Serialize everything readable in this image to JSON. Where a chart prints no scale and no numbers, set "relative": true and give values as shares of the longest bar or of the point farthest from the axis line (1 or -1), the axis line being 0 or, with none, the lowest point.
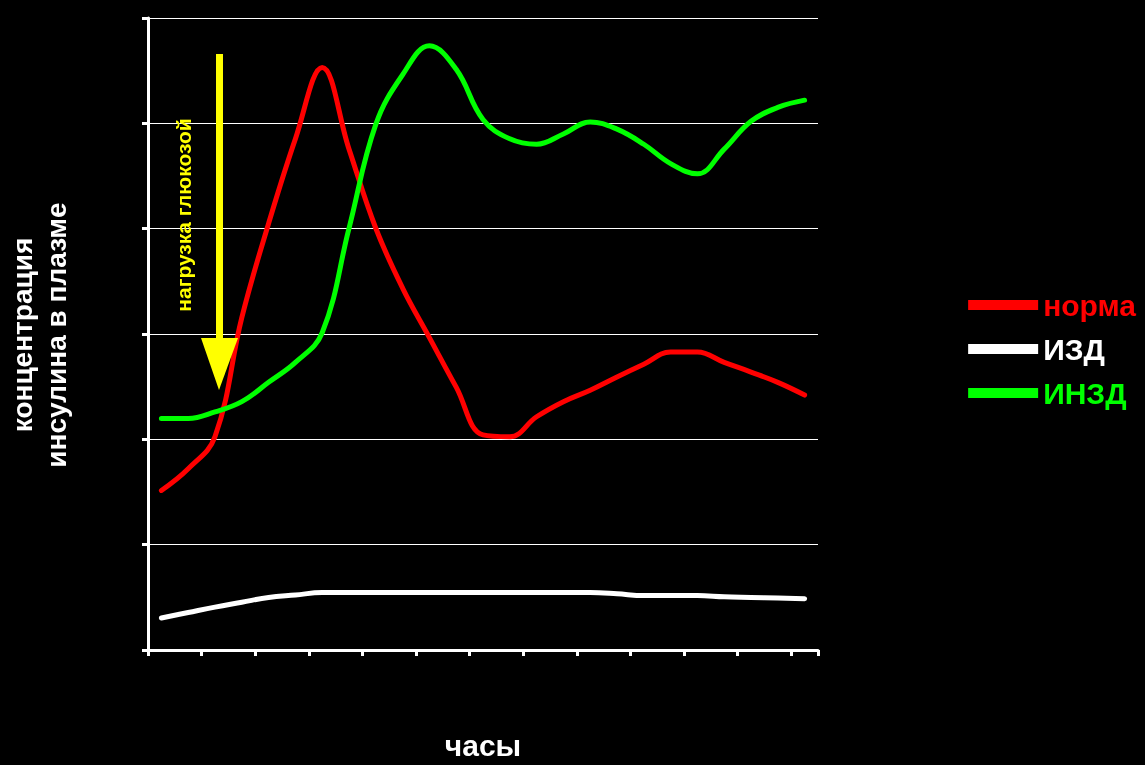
{
  "chart_data": {
    "type": "line",
    "relative": true,
    "xlabel": "часы",
    "ylabel": "концентрация\nинсулина в плазме",
    "annotations": [
      "нагрузка глюкозой"
    ],
    "categories": [
      null,
      null,
      null,
      null,
      null,
      null,
      null,
      null,
      null,
      null,
      null,
      null,
      null,
      null,
      null,
      null,
      null,
      null,
      null,
      null,
      null,
      null,
      null,
      null,
      null
    ],
    "series": [
      {
        "name": "норма",
        "color": "#ff0000",
        "values": [
          0.264,
          0.3,
          0.353,
          0.55,
          0.706,
          0.846,
          0.964,
          0.829,
          0.698,
          0.599,
          0.517,
          0.435,
          0.356,
          0.353,
          0.386,
          0.411,
          0.43,
          0.452,
          0.473,
          0.493,
          0.493,
          0.476,
          0.46,
          0.443,
          0.422
        ]
      },
      {
        "name": "ИЗД",
        "color": "#ffffff",
        "values": [
          0.053,
          0.062,
          0.071,
          0.079,
          0.087,
          0.091,
          0.095,
          0.095,
          0.095,
          0.095,
          0.095,
          0.095,
          0.095,
          0.095,
          0.095,
          0.095,
          0.095,
          0.093,
          0.09,
          0.09,
          0.09,
          0.088,
          0.087,
          0.086,
          0.085
        ]
      },
      {
        "name": "ИНЗД",
        "color": "#00ff00",
        "values": [
          0.383,
          0.383,
          0.394,
          0.411,
          0.443,
          0.476,
          0.525,
          0.698,
          0.87,
          0.952,
          1,
          0.961,
          0.878,
          0.846,
          0.837,
          0.854,
          0.874,
          0.862,
          0.837,
          0.805,
          0.788,
          0.829,
          0.875,
          0.898,
          0.91
        ]
      }
    ],
    "grid": "y",
    "legend": "right",
    "marker": "none",
    "line_style": "solid"
  }
}
